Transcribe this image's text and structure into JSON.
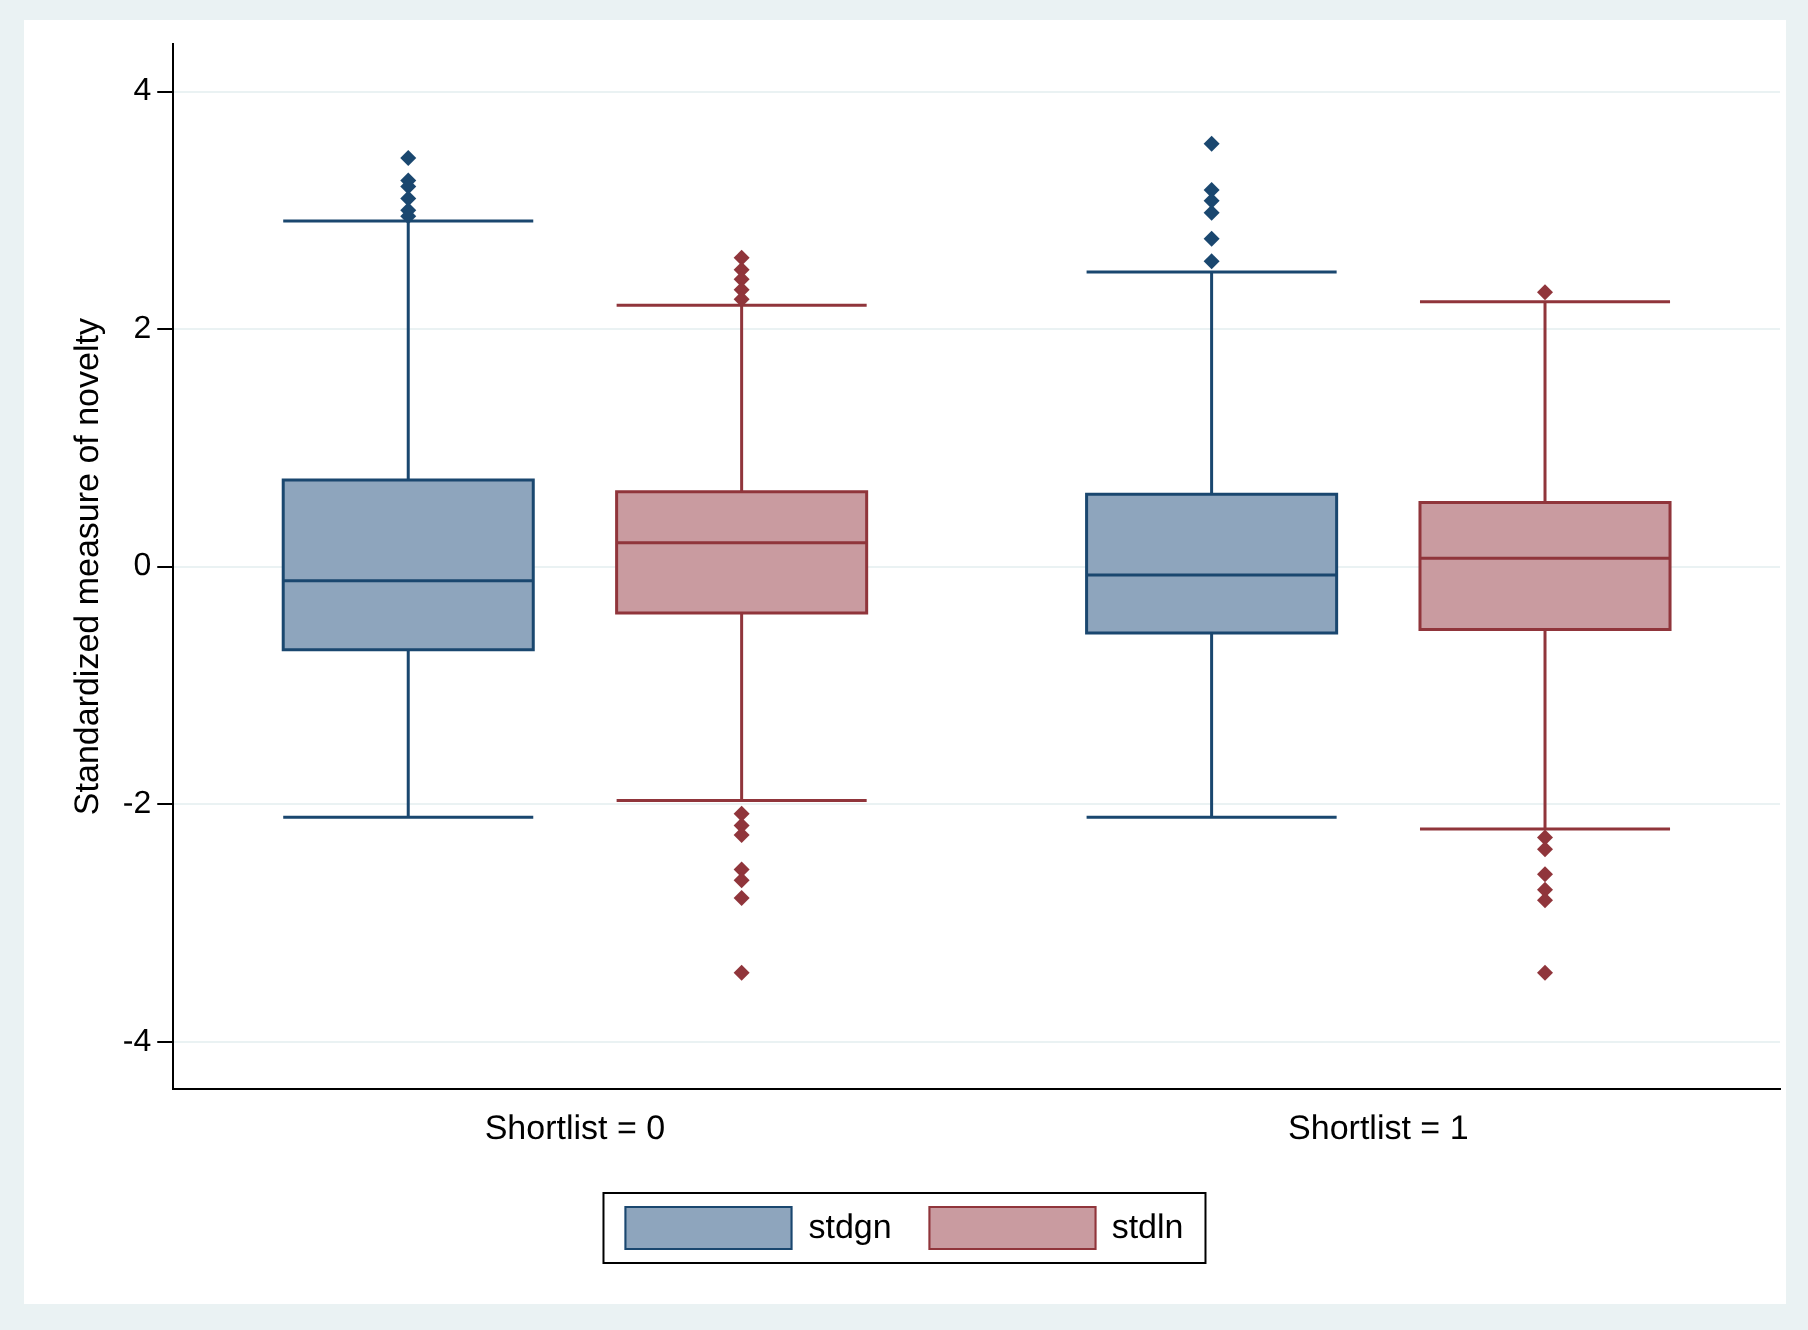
{
  "chart_data": {
    "type": "box",
    "ylabel": "Standardized measure of novelty",
    "categories": [
      "Shortlist = 0",
      "Shortlist = 1"
    ],
    "series": [
      {
        "name": "stdgn",
        "color": "#8ea5bd",
        "boxes": [
          {
            "low": -2.11,
            "q1": -0.7,
            "median": -0.12,
            "q3": 0.73,
            "high": 2.91,
            "outliers": [
              3.44,
              3.25,
              3.2,
              3.1,
              3.0,
              2.95
            ]
          },
          {
            "low": -2.11,
            "q1": -0.56,
            "median": -0.07,
            "q3": 0.61,
            "high": 2.48,
            "outliers": [
              3.56,
              3.17,
              3.08,
              2.98,
              2.76,
              2.57
            ]
          }
        ]
      },
      {
        "name": "stdln",
        "color": "#c99ba0",
        "boxes": [
          {
            "low": -1.97,
            "q1": -0.39,
            "median": 0.2,
            "q3": 0.63,
            "high": 2.2,
            "outliers": [
              2.6,
              2.5,
              2.42,
              2.33,
              2.25,
              -2.08,
              -2.18,
              -2.26,
              -2.55,
              -2.64,
              -2.79,
              -3.42
            ]
          },
          {
            "low": -2.21,
            "q1": -0.53,
            "median": 0.07,
            "q3": 0.54,
            "high": 2.23,
            "outliers": [
              2.31,
              -2.28,
              -2.38,
              -2.59,
              -2.72,
              -2.81,
              -3.42
            ]
          }
        ]
      }
    ],
    "ylim": [
      -4.4,
      4.4
    ],
    "yticks": [
      -4,
      -2,
      0,
      2,
      4
    ],
    "grid": "y",
    "legend": "bottom"
  }
}
